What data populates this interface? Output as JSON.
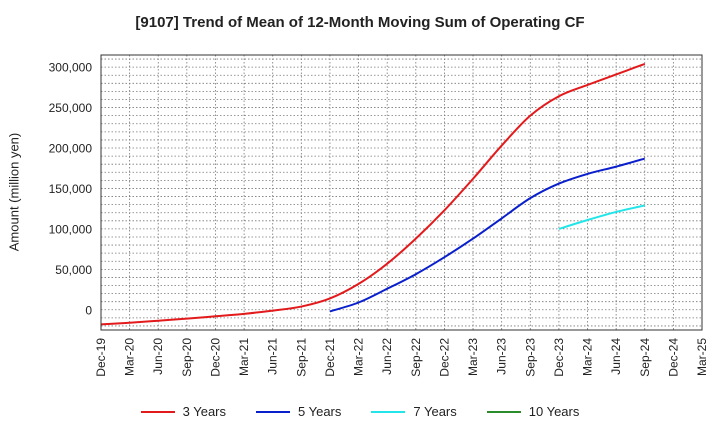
{
  "chart_data": {
    "type": "line",
    "title": "[9107]  Trend of Mean of 12-Month Moving Sum of Operating CF",
    "xlabel": "",
    "ylabel": "Amount (million yen)",
    "ylim": [
      -25000,
      315000
    ],
    "yticks": [
      0,
      50000,
      100000,
      150000,
      200000,
      250000,
      300000
    ],
    "ytick_labels": [
      "0",
      "50,000",
      "100,000",
      "150,000",
      "200,000",
      "250,000",
      "300,000"
    ],
    "categories": [
      "Dec-19",
      "Mar-20",
      "Jun-20",
      "Sep-20",
      "Dec-20",
      "Mar-21",
      "Jun-21",
      "Sep-21",
      "Dec-21",
      "Mar-22",
      "Jun-22",
      "Sep-22",
      "Dec-22",
      "Mar-23",
      "Jun-23",
      "Sep-23",
      "Dec-23",
      "Mar-24",
      "Jun-24",
      "Sep-24",
      "Dec-24",
      "Mar-25"
    ],
    "grid": true,
    "legend_position": "bottom",
    "series": [
      {
        "name": "3 Years",
        "color": "#e31a1c",
        "x": [
          "Dec-19",
          "Mar-20",
          "Jun-20",
          "Sep-20",
          "Dec-20",
          "Mar-21",
          "Jun-21",
          "Sep-21",
          "Dec-21",
          "Mar-22",
          "Jun-22",
          "Sep-22",
          "Dec-22",
          "Mar-23",
          "Jun-23",
          "Sep-23",
          "Dec-23",
          "Mar-24",
          "Jun-24",
          "Sep-24"
        ],
        "values": [
          -18000,
          -16000,
          -13500,
          -11000,
          -8000,
          -5000,
          -1000,
          4000,
          14000,
          32000,
          57000,
          88000,
          123000,
          162000,
          203000,
          240000,
          264000,
          278000,
          291000,
          304000
        ]
      },
      {
        "name": "5 Years",
        "color": "#0a1fcc",
        "x": [
          "Dec-21",
          "Mar-22",
          "Jun-22",
          "Sep-22",
          "Dec-22",
          "Mar-23",
          "Jun-23",
          "Sep-23",
          "Dec-23",
          "Mar-24",
          "Jun-24",
          "Sep-24"
        ],
        "values": [
          -2000,
          9000,
          26000,
          44000,
          65000,
          88000,
          113000,
          138000,
          156000,
          168000,
          177000,
          187000
        ]
      },
      {
        "name": "7 Years",
        "color": "#22e5ea",
        "x": [
          "Dec-23",
          "Mar-24",
          "Jun-24",
          "Sep-24"
        ],
        "values": [
          100000,
          111000,
          121000,
          129000
        ]
      },
      {
        "name": "10 Years",
        "color": "#2a8c2a",
        "x": [],
        "values": []
      }
    ]
  }
}
